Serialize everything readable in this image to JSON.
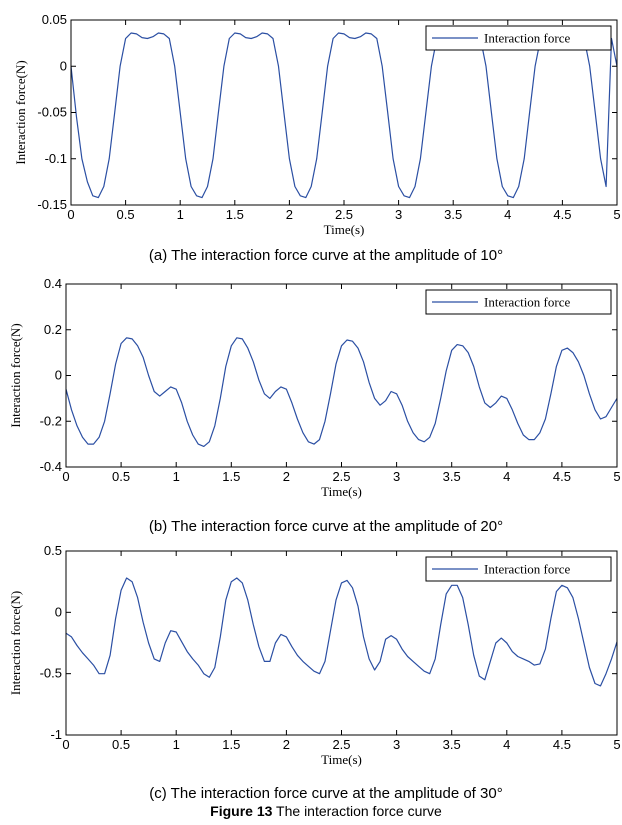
{
  "figure_caption": {
    "label": "Figure 13",
    "text": " The interaction force curve"
  },
  "chart_data": [
    {
      "type": "line",
      "caption": "(a) The interaction force curve at the amplitude of 10°",
      "xlabel": "Time(s)",
      "ylabel": "Interaction  force(N)",
      "xlim": [
        0,
        5
      ],
      "ylim": [
        -0.15,
        0.05
      ],
      "xticks": [
        0,
        0.5,
        1,
        1.5,
        2,
        2.5,
        3,
        3.5,
        4,
        4.5,
        5
      ],
      "xtick_labels": [
        "0",
        "0.5",
        "1",
        "1.5",
        "2",
        "2.5",
        "3",
        "3.5",
        "4",
        "4.5",
        "5"
      ],
      "yticks": [
        -0.15,
        -0.1,
        -0.05,
        0,
        0.05
      ],
      "ytick_labels": [
        "-0.15",
        "-0.1",
        "-0.05",
        "0",
        "0.05"
      ],
      "grid": false,
      "legend_position": "top-right",
      "series_color": "#2b4fa3",
      "series": [
        {
          "name": "Interaction force",
          "x": [
            0,
            0.05,
            0.1,
            0.15,
            0.2,
            0.25,
            0.3,
            0.35,
            0.4,
            0.45,
            0.5,
            0.55,
            0.6,
            0.65,
            0.7,
            0.75,
            0.8,
            0.85,
            0.9,
            0.95,
            1.0,
            1.05,
            1.1,
            1.15,
            1.2,
            1.25,
            1.3,
            1.35,
            1.4,
            1.45,
            1.5,
            1.55,
            1.6,
            1.65,
            1.7,
            1.75,
            1.8,
            1.85,
            1.9,
            1.95,
            2.0,
            2.05,
            2.1,
            2.15,
            2.2,
            2.25,
            2.3,
            2.35,
            2.4,
            2.45,
            2.5,
            2.55,
            2.6,
            2.65,
            2.7,
            2.75,
            2.8,
            2.85,
            2.9,
            2.95,
            3.0,
            3.05,
            3.1,
            3.15,
            3.2,
            3.25,
            3.3,
            3.35,
            3.4,
            3.45,
            3.5,
            3.55,
            3.6,
            3.65,
            3.7,
            3.75,
            3.8,
            3.85,
            3.9,
            3.95,
            4.0,
            4.05,
            4.1,
            4.15,
            4.2,
            4.25,
            4.3,
            4.35,
            4.4,
            4.45,
            4.5,
            4.55,
            4.6,
            4.65,
            4.7,
            4.75,
            4.8,
            4.85,
            4.9,
            4.95,
            5.0
          ],
          "y": [
            0.0,
            -0.055,
            -0.1,
            -0.125,
            -0.14,
            -0.142,
            -0.13,
            -0.1,
            -0.05,
            0.0,
            0.03,
            0.036,
            0.035,
            0.031,
            0.03,
            0.032,
            0.036,
            0.035,
            0.03,
            0.0,
            -0.05,
            -0.1,
            -0.13,
            -0.14,
            -0.142,
            -0.13,
            -0.1,
            -0.05,
            0.0,
            0.03,
            0.036,
            0.035,
            0.031,
            0.03,
            0.032,
            0.036,
            0.035,
            0.03,
            0.0,
            -0.05,
            -0.1,
            -0.13,
            -0.14,
            -0.142,
            -0.13,
            -0.1,
            -0.05,
            0.0,
            0.03,
            0.036,
            0.035,
            0.031,
            0.03,
            0.032,
            0.036,
            0.035,
            0.03,
            0.0,
            -0.05,
            -0.1,
            -0.13,
            -0.14,
            -0.142,
            -0.13,
            -0.1,
            -0.05,
            0.0,
            0.03,
            0.036,
            0.035,
            0.031,
            0.03,
            0.032,
            0.036,
            0.035,
            0.03,
            0.0,
            -0.05,
            -0.1,
            -0.13,
            -0.14,
            -0.142,
            -0.13,
            -0.1,
            -0.05,
            0.0,
            0.03,
            0.036,
            0.035,
            0.031,
            0.03,
            0.032,
            0.036,
            0.035,
            0.03,
            0.0,
            -0.05,
            -0.1,
            -0.13,
            0.03,
            0.0
          ]
        }
      ]
    },
    {
      "type": "line",
      "caption": "(b) The interaction force curve at the amplitude of 20°",
      "xlabel": "Time(s)",
      "ylabel": "Interaction  force(N)",
      "xlim": [
        0,
        5
      ],
      "ylim": [
        -0.4,
        0.4
      ],
      "xticks": [
        0,
        0.5,
        1,
        1.5,
        2,
        2.5,
        3,
        3.5,
        4,
        4.5,
        5
      ],
      "xtick_labels": [
        "0",
        "0.5",
        "1",
        "1.5",
        "2",
        "2.5",
        "3",
        "3.5",
        "4",
        "4.5",
        "5"
      ],
      "yticks": [
        -0.4,
        -0.2,
        0,
        0.2,
        0.4
      ],
      "ytick_labels": [
        "-0.4",
        "-0.2",
        "0",
        "0.2",
        "0.4"
      ],
      "grid": false,
      "legend_position": "top-right",
      "series_color": "#2b4fa3",
      "series": [
        {
          "name": "Interaction force",
          "x": [
            0,
            0.05,
            0.1,
            0.15,
            0.2,
            0.25,
            0.3,
            0.35,
            0.4,
            0.45,
            0.5,
            0.55,
            0.6,
            0.65,
            0.7,
            0.75,
            0.8,
            0.85,
            0.9,
            0.95,
            1.0,
            1.05,
            1.1,
            1.15,
            1.2,
            1.25,
            1.3,
            1.35,
            1.4,
            1.45,
            1.5,
            1.55,
            1.6,
            1.65,
            1.7,
            1.75,
            1.8,
            1.85,
            1.9,
            1.95,
            2.0,
            2.05,
            2.1,
            2.15,
            2.2,
            2.25,
            2.3,
            2.35,
            2.4,
            2.45,
            2.5,
            2.55,
            2.6,
            2.65,
            2.7,
            2.75,
            2.8,
            2.85,
            2.9,
            2.95,
            3.0,
            3.05,
            3.1,
            3.15,
            3.2,
            3.25,
            3.3,
            3.35,
            3.4,
            3.45,
            3.5,
            3.55,
            3.6,
            3.65,
            3.7,
            3.75,
            3.8,
            3.85,
            3.9,
            3.95,
            4.0,
            4.05,
            4.1,
            4.15,
            4.2,
            4.25,
            4.3,
            4.35,
            4.4,
            4.45,
            4.5,
            4.55,
            4.6,
            4.65,
            4.7,
            4.75,
            4.8,
            4.85,
            4.9,
            4.95,
            5.0
          ],
          "y": [
            -0.06,
            -0.15,
            -0.22,
            -0.27,
            -0.3,
            -0.3,
            -0.27,
            -0.2,
            -0.08,
            0.05,
            0.14,
            0.165,
            0.16,
            0.13,
            0.08,
            0.0,
            -0.07,
            -0.09,
            -0.07,
            -0.05,
            -0.06,
            -0.12,
            -0.2,
            -0.26,
            -0.3,
            -0.31,
            -0.29,
            -0.22,
            -0.1,
            0.04,
            0.13,
            0.165,
            0.16,
            0.12,
            0.06,
            -0.02,
            -0.08,
            -0.1,
            -0.07,
            -0.05,
            -0.06,
            -0.12,
            -0.19,
            -0.25,
            -0.29,
            -0.3,
            -0.28,
            -0.2,
            -0.08,
            0.05,
            0.13,
            0.155,
            0.15,
            0.12,
            0.06,
            -0.03,
            -0.1,
            -0.13,
            -0.11,
            -0.07,
            -0.08,
            -0.13,
            -0.2,
            -0.25,
            -0.28,
            -0.29,
            -0.27,
            -0.21,
            -0.1,
            0.02,
            0.11,
            0.135,
            0.13,
            0.1,
            0.04,
            -0.05,
            -0.12,
            -0.14,
            -0.12,
            -0.09,
            -0.1,
            -0.15,
            -0.21,
            -0.26,
            -0.28,
            -0.28,
            -0.25,
            -0.19,
            -0.08,
            0.04,
            0.11,
            0.12,
            0.1,
            0.06,
            0.0,
            -0.08,
            -0.15,
            -0.19,
            -0.18,
            -0.14,
            -0.1
          ]
        }
      ]
    },
    {
      "type": "line",
      "caption": "(c) The interaction force curve at the amplitude of 30°",
      "xlabel": "Time(s)",
      "ylabel": "Interaction  force(N)",
      "xlim": [
        0,
        5
      ],
      "ylim": [
        -1,
        0.5
      ],
      "xticks": [
        0,
        0.5,
        1,
        1.5,
        2,
        2.5,
        3,
        3.5,
        4,
        4.5,
        5
      ],
      "xtick_labels": [
        "0",
        "0.5",
        "1",
        "1.5",
        "2",
        "2.5",
        "3",
        "3.5",
        "4",
        "4.5",
        "5"
      ],
      "yticks": [
        -1,
        -0.5,
        0,
        0.5
      ],
      "ytick_labels": [
        "-1",
        "-0.5",
        "0",
        "0.5"
      ],
      "grid": false,
      "legend_position": "top-right",
      "series_color": "#2b4fa3",
      "series": [
        {
          "name": "Interaction  force",
          "x": [
            0,
            0.05,
            0.1,
            0.15,
            0.2,
            0.25,
            0.3,
            0.35,
            0.4,
            0.45,
            0.5,
            0.55,
            0.6,
            0.65,
            0.7,
            0.75,
            0.8,
            0.85,
            0.9,
            0.95,
            1.0,
            1.05,
            1.1,
            1.15,
            1.2,
            1.25,
            1.3,
            1.35,
            1.4,
            1.45,
            1.5,
            1.55,
            1.6,
            1.65,
            1.7,
            1.75,
            1.8,
            1.85,
            1.9,
            1.95,
            2.0,
            2.05,
            2.1,
            2.15,
            2.2,
            2.25,
            2.3,
            2.35,
            2.4,
            2.45,
            2.5,
            2.55,
            2.6,
            2.65,
            2.7,
            2.75,
            2.8,
            2.85,
            2.9,
            2.95,
            3.0,
            3.05,
            3.1,
            3.15,
            3.2,
            3.25,
            3.3,
            3.35,
            3.4,
            3.45,
            3.5,
            3.55,
            3.6,
            3.65,
            3.7,
            3.75,
            3.8,
            3.85,
            3.9,
            3.95,
            4.0,
            4.05,
            4.1,
            4.15,
            4.2,
            4.25,
            4.3,
            4.35,
            4.4,
            4.45,
            4.5,
            4.55,
            4.6,
            4.65,
            4.7,
            4.75,
            4.8,
            4.85,
            4.9,
            4.95,
            5.0
          ],
          "y": [
            -0.17,
            -0.2,
            -0.27,
            -0.33,
            -0.38,
            -0.43,
            -0.5,
            -0.5,
            -0.35,
            -0.05,
            0.18,
            0.28,
            0.25,
            0.12,
            -0.08,
            -0.25,
            -0.38,
            -0.4,
            -0.25,
            -0.15,
            -0.16,
            -0.24,
            -0.32,
            -0.38,
            -0.43,
            -0.5,
            -0.53,
            -0.45,
            -0.2,
            0.1,
            0.25,
            0.28,
            0.24,
            0.1,
            -0.1,
            -0.28,
            -0.4,
            -0.4,
            -0.25,
            -0.18,
            -0.2,
            -0.28,
            -0.35,
            -0.4,
            -0.44,
            -0.48,
            -0.5,
            -0.4,
            -0.15,
            0.1,
            0.24,
            0.26,
            0.2,
            0.05,
            -0.2,
            -0.38,
            -0.47,
            -0.4,
            -0.22,
            -0.19,
            -0.22,
            -0.3,
            -0.36,
            -0.4,
            -0.44,
            -0.48,
            -0.5,
            -0.38,
            -0.1,
            0.15,
            0.22,
            0.22,
            0.12,
            -0.1,
            -0.35,
            -0.52,
            -0.55,
            -0.4,
            -0.25,
            -0.21,
            -0.25,
            -0.32,
            -0.36,
            -0.38,
            -0.4,
            -0.43,
            -0.42,
            -0.3,
            -0.05,
            0.17,
            0.22,
            0.2,
            0.12,
            -0.05,
            -0.25,
            -0.45,
            -0.58,
            -0.6,
            -0.5,
            -0.38,
            -0.24
          ]
        }
      ]
    }
  ]
}
